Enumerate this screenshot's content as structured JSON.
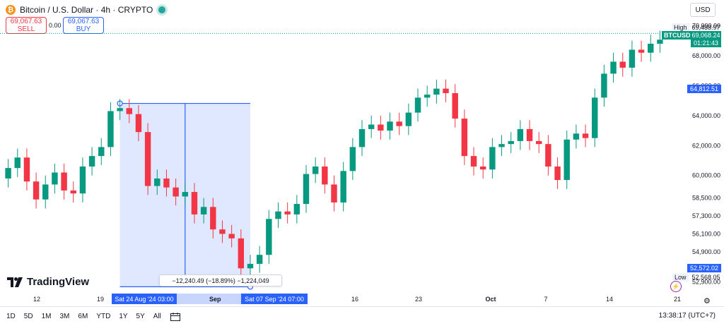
{
  "header": {
    "title": "Bitcoin / U.S. Dollar · 4h · CRYPTO",
    "btc_symbol": "₿",
    "currency": "USD",
    "sell": {
      "price": "69,067.63",
      "label": "SELL"
    },
    "buy": {
      "price": "69,067.63",
      "label": "BUY"
    },
    "spread": "0.00"
  },
  "price_tags": {
    "high_label": "High",
    "high_value": "69,488.97",
    "symbol": "BTCUSD",
    "last_price": "69,068.24",
    "countdown": "01:21:43",
    "measure_top": "64,812.51",
    "measure_bottom": "52,572.02",
    "low_label": "Low",
    "low_value": "52,568.05"
  },
  "measure": {
    "info": "−12,240.49 (−18.89%) −1,224,049",
    "start_time": "Sat 24 Aug '24   03:00",
    "end_time": "Sat 07 Sep '24   07:00",
    "mid_label": "Sep"
  },
  "logo": {
    "text": "TradingView"
  },
  "bottom_bar": {
    "ranges": [
      "1D",
      "5D",
      "1M",
      "3M",
      "6M",
      "YTD",
      "1Y",
      "5Y",
      "All"
    ],
    "clock": "13:38:17 (UTC+7)"
  },
  "colors": {
    "up": "#089981",
    "down": "#f23645",
    "accent": "#2962ff"
  },
  "chart_data": {
    "type": "candlestick",
    "y_axis_ticks": [
      "70,000.00",
      "68,000.00",
      "66,000.00",
      "64,000.00",
      "62,000.00",
      "60,000.00",
      "58,500.00",
      "57,300.00",
      "56,100.00",
      "54,900.00",
      "53,900.00",
      "52,900.00"
    ],
    "x_axis_ticks": [
      "12",
      "19",
      "26",
      "Sep",
      "9",
      "16",
      "23",
      "Oct",
      "7",
      "14",
      "21"
    ],
    "series": [
      {
        "x": "12",
        "open": 59800,
        "close": 60500
      },
      {
        "x": "13",
        "open": 60500,
        "close": 61200
      },
      {
        "x": "14",
        "open": 61200,
        "close": 59600
      },
      {
        "x": "15",
        "open": 59600,
        "close": 58400
      },
      {
        "x": "16",
        "open": 58400,
        "close": 59400
      },
      {
        "x": "17",
        "open": 59400,
        "close": 60200
      },
      {
        "x": "18",
        "open": 60200,
        "close": 59000
      },
      {
        "x": "19",
        "open": 59000,
        "close": 58800
      },
      {
        "x": "20",
        "open": 58800,
        "close": 60600
      },
      {
        "x": "21",
        "open": 60600,
        "close": 61300
      },
      {
        "x": "22",
        "open": 61300,
        "close": 61900
      },
      {
        "x": "23",
        "open": 61900,
        "close": 64300
      },
      {
        "x": "24",
        "open": 64300,
        "close": 64500
      },
      {
        "x": "25",
        "open": 64500,
        "close": 64100
      },
      {
        "x": "26",
        "open": 64100,
        "close": 62900
      },
      {
        "x": "27",
        "open": 62900,
        "close": 59300
      },
      {
        "x": "28",
        "open": 59300,
        "close": 59800
      },
      {
        "x": "29",
        "open": 59800,
        "close": 59200
      },
      {
        "x": "30",
        "open": 59200,
        "close": 58600
      },
      {
        "x": "31",
        "open": 58600,
        "close": 58900
      },
      {
        "x": "Sep",
        "open": 58900,
        "close": 57400
      },
      {
        "x": "2",
        "open": 57400,
        "close": 57900
      },
      {
        "x": "3",
        "open": 57900,
        "close": 56400
      },
      {
        "x": "4",
        "open": 56400,
        "close": 56100
      },
      {
        "x": "5",
        "open": 56100,
        "close": 55800
      },
      {
        "x": "6",
        "open": 55800,
        "close": 53800
      },
      {
        "x": "7",
        "open": 53800,
        "close": 54100
      },
      {
        "x": "8",
        "open": 54100,
        "close": 54700
      },
      {
        "x": "9",
        "open": 54700,
        "close": 57100
      },
      {
        "x": "10",
        "open": 57100,
        "close": 57600
      },
      {
        "x": "11",
        "open": 57600,
        "close": 57400
      },
      {
        "x": "12b",
        "open": 57400,
        "close": 58100
      },
      {
        "x": "13b",
        "open": 58100,
        "close": 60100
      },
      {
        "x": "14b",
        "open": 60100,
        "close": 60600
      },
      {
        "x": "15b",
        "open": 60600,
        "close": 59400
      },
      {
        "x": "16b",
        "open": 59400,
        "close": 58200
      },
      {
        "x": "17b",
        "open": 58200,
        "close": 60300
      },
      {
        "x": "18b",
        "open": 60300,
        "close": 61900
      },
      {
        "x": "19b",
        "open": 61900,
        "close": 63100
      },
      {
        "x": "20b",
        "open": 63100,
        "close": 63400
      },
      {
        "x": "21b",
        "open": 63400,
        "close": 63000
      },
      {
        "x": "22b",
        "open": 63000,
        "close": 63600
      },
      {
        "x": "23b",
        "open": 63600,
        "close": 63300
      },
      {
        "x": "24b",
        "open": 63300,
        "close": 64200
      },
      {
        "x": "25b",
        "open": 64200,
        "close": 65200
      },
      {
        "x": "26b",
        "open": 65200,
        "close": 65400
      },
      {
        "x": "27b",
        "open": 65400,
        "close": 65800
      },
      {
        "x": "28b",
        "open": 65800,
        "close": 65500
      },
      {
        "x": "29b",
        "open": 65500,
        "close": 63800
      },
      {
        "x": "30b",
        "open": 63800,
        "close": 61300
      },
      {
        "x": "Oct",
        "open": 61300,
        "close": 60600
      },
      {
        "x": "2c",
        "open": 60600,
        "close": 60400
      },
      {
        "x": "3c",
        "open": 60400,
        "close": 61900
      },
      {
        "x": "4c",
        "open": 61900,
        "close": 62100
      },
      {
        "x": "5c",
        "open": 62100,
        "close": 62300
      },
      {
        "x": "6c",
        "open": 62300,
        "close": 63100
      },
      {
        "x": "7c",
        "open": 63100,
        "close": 62300
      },
      {
        "x": "8c",
        "open": 62300,
        "close": 62100
      },
      {
        "x": "9c",
        "open": 62100,
        "close": 60600
      },
      {
        "x": "10c",
        "open": 60600,
        "close": 59700
      },
      {
        "x": "11c",
        "open": 59700,
        "close": 62400
      },
      {
        "x": "12c",
        "open": 62400,
        "close": 62800
      },
      {
        "x": "13c",
        "open": 62800,
        "close": 62500
      },
      {
        "x": "14c",
        "open": 62500,
        "close": 65200
      },
      {
        "x": "15c",
        "open": 65200,
        "close": 66800
      },
      {
        "x": "16c",
        "open": 66800,
        "close": 67600
      },
      {
        "x": "17c",
        "open": 67600,
        "close": 67200
      },
      {
        "x": "18c",
        "open": 67200,
        "close": 68400
      },
      {
        "x": "19c",
        "open": 68400,
        "close": 68200
      },
      {
        "x": "20c",
        "open": 68200,
        "close": 68800
      },
      {
        "x": "21c",
        "open": 68800,
        "close": 69068
      }
    ],
    "y_range": [
      52400,
      70400
    ],
    "measure_range": {
      "x_start": "24",
      "x_end": "7",
      "y_high": 64812.51,
      "y_low": 52572.02
    }
  }
}
